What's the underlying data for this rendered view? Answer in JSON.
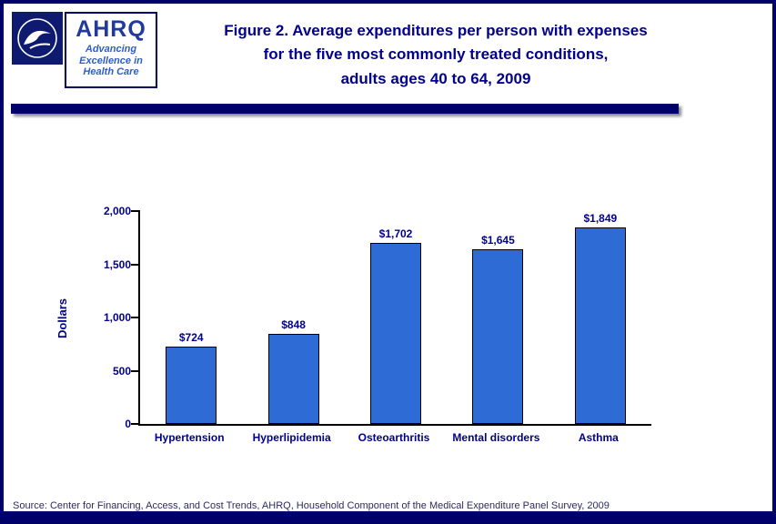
{
  "colors": {
    "border_navy": "#00006B",
    "title_navy": "#00008B",
    "bar_blue": "#2E6BD4"
  },
  "header": {
    "title_lines": [
      "Figure 2. Average expenditures per person with expenses",
      "for the five most commonly treated conditions,",
      "adults ages 40 to 64, 2009"
    ],
    "logo": {
      "wordmark": "AHRQ",
      "tagline_lines": [
        "Advancing",
        "Excellence in",
        "Health Care"
      ]
    }
  },
  "chart_data": {
    "type": "bar",
    "title": "Figure 2. Average expenditures per person with expenses for the five most commonly treated conditions, adults ages 40 to 64, 2009",
    "categories": [
      "Hypertension",
      "Hyperlipidemia",
      "Osteoarthritis",
      "Mental disorders",
      "Asthma"
    ],
    "values": [
      724,
      848,
      1702,
      1645,
      1849
    ],
    "value_labels": [
      "$724",
      "$848",
      "$1,702",
      "$1,645",
      "$1,849"
    ],
    "xlabel": "",
    "ylabel": "Dollars",
    "ylim": [
      0,
      2000
    ],
    "yticks": [
      0,
      500,
      1000,
      1500,
      2000
    ],
    "ytick_labels": [
      "0",
      "500",
      "1,000",
      "1,500",
      "2,000"
    ],
    "bar_color": "#2E6BD4",
    "bar_border": "#000000",
    "grid": false,
    "legend": false
  },
  "footer": {
    "source": "Source: Center for Financing, Access, and Cost Trends, AHRQ, Household Component of the Medical Expenditure Panel Survey, 2009"
  }
}
